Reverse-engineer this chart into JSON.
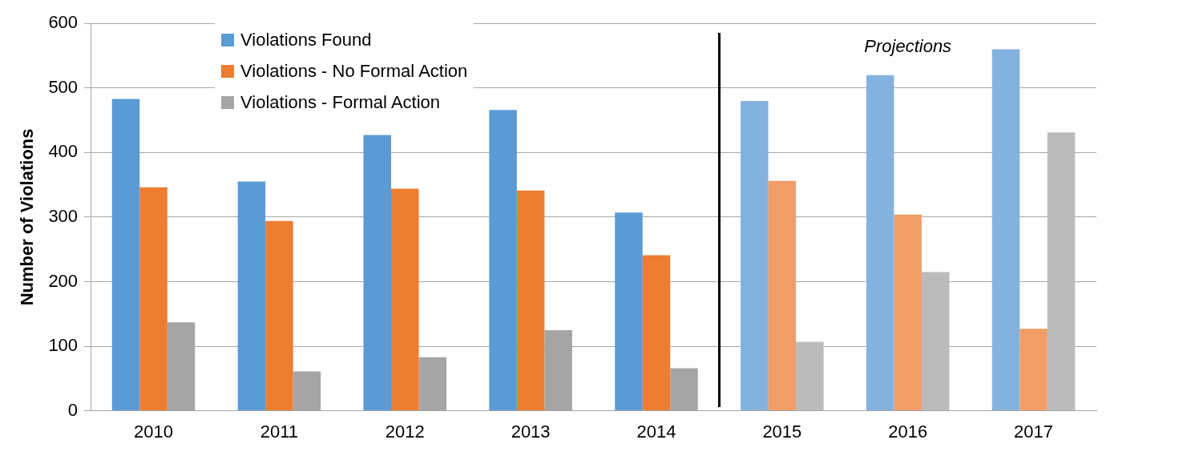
{
  "chart_data": {
    "type": "bar",
    "ylabel": "Number of Violations",
    "categories": [
      "2010",
      "2011",
      "2012",
      "2013",
      "2014",
      "2015",
      "2016",
      "2017"
    ],
    "series": [
      {
        "name": "Violations Found",
        "color": "#5b9bd5",
        "colors": [
          "#5b9bd5",
          "#5b9bd5",
          "#5b9bd5",
          "#5b9bd5",
          "#5b9bd5",
          "#84b2de",
          "#84b2de",
          "#84b2de"
        ],
        "values": [
          483,
          355,
          427,
          466,
          307,
          480,
          520,
          560
        ]
      },
      {
        "name": "Violations - No Formal Action",
        "color": "#ed7d31",
        "colors": [
          "#ed7d31",
          "#ed7d31",
          "#ed7d31",
          "#ed7d31",
          "#ed7d31",
          "#f19e66",
          "#f19e66",
          "#f19e66"
        ],
        "values": [
          346,
          294,
          344,
          341,
          241,
          356,
          304,
          127
        ]
      },
      {
        "name": "Violations - Formal Action",
        "color": "#a5a5a5",
        "colors": [
          "#a5a5a5",
          "#a5a5a5",
          "#a5a5a5",
          "#a5a5a5",
          "#a5a5a5",
          "#bbbbbb",
          "#bbbbbb",
          "#bbbbbb"
        ],
        "values": [
          137,
          61,
          83,
          125,
          66,
          107,
          215,
          431
        ]
      }
    ],
    "ylim": [
      0,
      600
    ],
    "yticks": [
      0,
      100,
      200,
      300,
      400,
      500,
      600
    ],
    "grid": "y",
    "legend": "top left",
    "annotations": [
      "Projections"
    ]
  }
}
